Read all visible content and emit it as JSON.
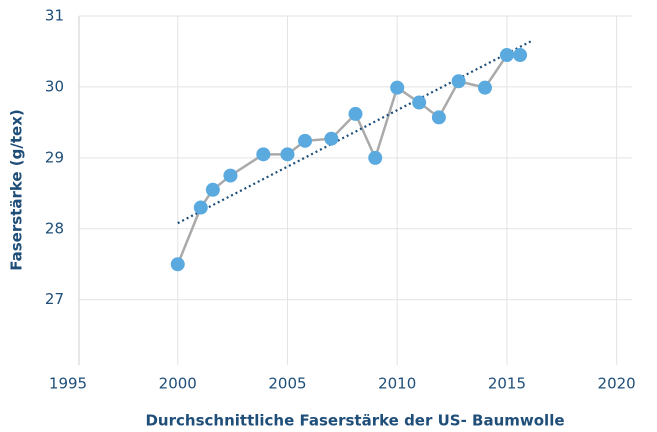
{
  "chart_data": {
    "type": "line",
    "x_label": "Durchschnittliche Faserstärke der US- Baumwolle",
    "y_label": "Faserstärke (g/tex)",
    "x": [
      2000,
      2001.05,
      2001.6,
      2002.4,
      2003.9,
      2005,
      2005.8,
      2007,
      2008.1,
      2009,
      2010,
      2011,
      2011.9,
      2012.8,
      2014,
      2015,
      2015.6
    ],
    "series": [
      {
        "color": "#5aaae0",
        "line_color": "#aaaaaa",
        "values": [
          27.5,
          28.3,
          28.55,
          28.75,
          29.05,
          29.05,
          29.24,
          29.27,
          29.62,
          29.0,
          29.99,
          29.78,
          29.57,
          30.08,
          29.99,
          30.45,
          30.45
        ]
      }
    ],
    "trendline": {
      "x": [
        2000,
        2016.2
      ],
      "values": [
        28.08,
        30.66
      ],
      "color": "#1f4e79"
    },
    "xlim": [
      1995.5,
      2020.7
    ],
    "xticks": [
      1995,
      2000,
      2005,
      2010,
      2015,
      2020
    ],
    "ylim": [
      26.08,
      31
    ],
    "yticks": [
      27,
      28,
      29,
      30,
      31
    ],
    "grid": true
  }
}
